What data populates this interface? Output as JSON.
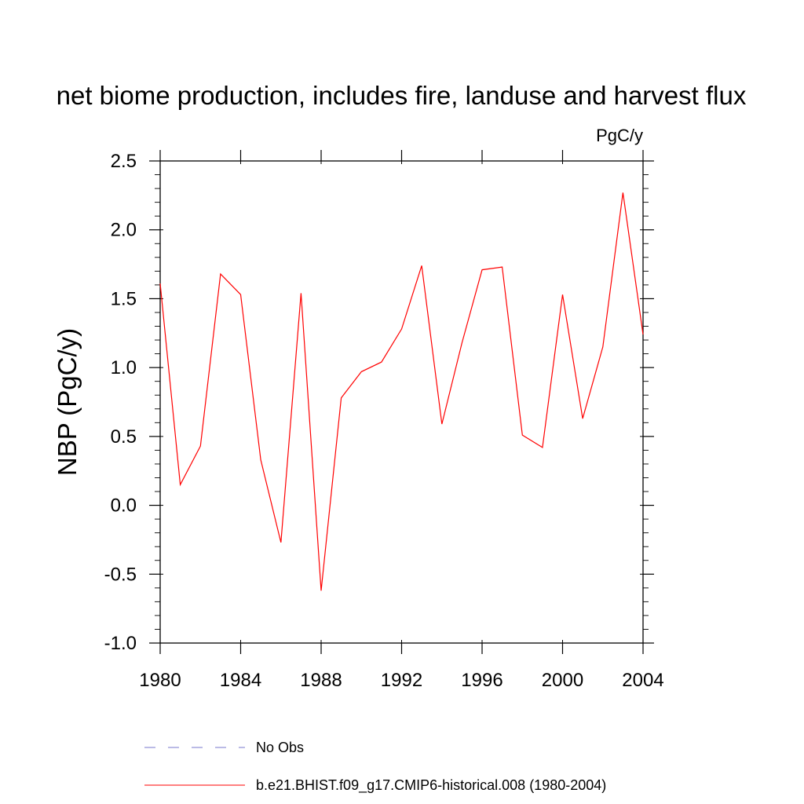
{
  "chart_data": {
    "type": "line",
    "title": "net biome production, includes fire, landuse and harvest flux",
    "units_label": "PgC/y",
    "xlabel": "",
    "ylabel": "NBP  (PgC/y)",
    "xlim": [
      1980,
      2004
    ],
    "ylim": [
      -1.0,
      2.5
    ],
    "x_ticks": [
      1980,
      1984,
      1988,
      1992,
      1996,
      2000,
      2004
    ],
    "x_tick_labels": [
      "1980",
      "1984",
      "1988",
      "1992",
      "1996",
      "2000",
      "2004"
    ],
    "y_ticks": [
      -1.0,
      -0.5,
      0.0,
      0.5,
      1.0,
      1.5,
      2.0,
      2.5
    ],
    "y_tick_labels": [
      "-1.0",
      "-0.5",
      "0.0",
      "0.5",
      "1.0",
      "1.5",
      "2.0",
      "2.5"
    ],
    "grid": false,
    "legend_position": "bottom",
    "series": [
      {
        "name": "b.e21.BHIST.f09_g17.CMIP6-historical.008 (1980-2004)",
        "color": "#ff0000",
        "dash": "solid",
        "x": [
          1980,
          1981,
          1982,
          1983,
          1984,
          1985,
          1986,
          1987,
          1988,
          1989,
          1990,
          1991,
          1992,
          1993,
          1994,
          1995,
          1996,
          1997,
          1998,
          1999,
          2000,
          2001,
          2002,
          2003,
          2004
        ],
        "y": [
          1.61,
          0.15,
          0.43,
          1.68,
          1.53,
          0.33,
          -0.27,
          1.54,
          -0.62,
          0.78,
          0.97,
          1.04,
          1.28,
          1.74,
          0.59,
          1.18,
          1.71,
          1.73,
          0.51,
          0.42,
          1.53,
          0.63,
          1.15,
          2.27,
          1.24
        ]
      }
    ],
    "legend": [
      {
        "label": "No Obs",
        "color": "#7777cc",
        "dash": "dashed"
      },
      {
        "label": "b.e21.BHIST.f09_g17.CMIP6-historical.008 (1980-2004)",
        "color": "#ff0000",
        "dash": "solid"
      }
    ]
  }
}
